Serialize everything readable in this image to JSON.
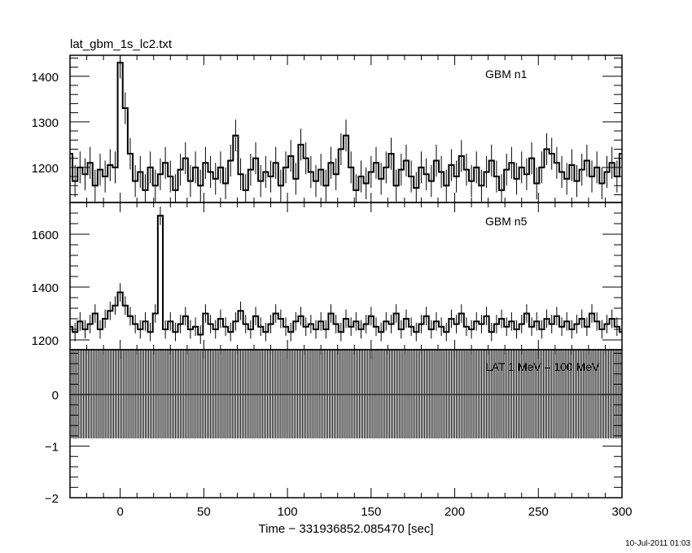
{
  "chart_data": [
    {
      "type": "line",
      "title": "lat_gbm_1s_lc2.txt",
      "series_label": "GBM n1",
      "x_start": -30,
      "x_step": 3,
      "values": [
        1230,
        1170,
        1200,
        1185,
        1210,
        1160,
        1195,
        1180,
        1205,
        1200,
        1430,
        1330,
        1230,
        1170,
        1190,
        1150,
        1200,
        1160,
        1185,
        1210,
        1180,
        1150,
        1195,
        1220,
        1170,
        1200,
        1160,
        1210,
        1190,
        1175,
        1200,
        1165,
        1215,
        1270,
        1185,
        1150,
        1195,
        1220,
        1170,
        1190,
        1180,
        1210,
        1160,
        1200,
        1225,
        1175,
        1250,
        1220,
        1190,
        1170,
        1195,
        1160,
        1210,
        1185,
        1240,
        1270,
        1200,
        1150,
        1180,
        1165,
        1190,
        1210,
        1175,
        1200,
        1230,
        1160,
        1195,
        1215,
        1180,
        1155,
        1200,
        1185,
        1170,
        1215,
        1190,
        1160,
        1205,
        1180,
        1225,
        1195,
        1170,
        1200,
        1160,
        1190,
        1215,
        1180,
        1150,
        1195,
        1210,
        1175,
        1200,
        1185,
        1220,
        1165,
        1200,
        1240,
        1230,
        1210,
        1190,
        1175,
        1205,
        1170,
        1195,
        1215,
        1180,
        1200,
        1165,
        1190,
        1210,
        1180,
        1230
      ],
      "error": 35,
      "xlim": [
        -30,
        300
      ],
      "ylim": [
        1123,
        1446
      ],
      "yticks": [
        1200,
        1300,
        1400
      ]
    },
    {
      "type": "line",
      "series_label": "GBM n5",
      "x_start": -30,
      "x_step": 3,
      "values": [
        1250,
        1230,
        1270,
        1240,
        1260,
        1300,
        1240,
        1280,
        1310,
        1330,
        1380,
        1330,
        1290,
        1260,
        1240,
        1270,
        1230,
        1300,
        1670,
        1240,
        1270,
        1230,
        1260,
        1290,
        1240,
        1250,
        1220,
        1300,
        1260,
        1240,
        1280,
        1250,
        1230,
        1270,
        1310,
        1260,
        1240,
        1290,
        1250,
        1230,
        1260,
        1300,
        1280,
        1250,
        1230,
        1270,
        1290,
        1250,
        1260,
        1240,
        1270,
        1240,
        1300,
        1260,
        1230,
        1280,
        1250,
        1270,
        1240,
        1260,
        1290,
        1250,
        1230,
        1270,
        1260,
        1300,
        1240,
        1280,
        1250,
        1230,
        1260,
        1290,
        1240,
        1270,
        1250,
        1230,
        1280,
        1260,
        1300,
        1250,
        1240,
        1270,
        1260,
        1290,
        1230,
        1260,
        1280,
        1250,
        1270,
        1240,
        1260,
        1300,
        1250,
        1270,
        1240,
        1280,
        1260,
        1290,
        1250,
        1270,
        1240,
        1260,
        1280,
        1250,
        1300,
        1270,
        1240,
        1260,
        1280,
        1250,
        1230
      ],
      "error": 35,
      "xlim": [
        -30,
        300
      ],
      "ylim": [
        1163,
        1720
      ],
      "yticks": [
        1200,
        1400,
        1600
      ]
    },
    {
      "type": "line",
      "series_label": "LAT 1 MeV – 100 MeV",
      "x_start": -30,
      "x_step": 1,
      "x_end": 300,
      "value": 0,
      "error": 0.85,
      "xlim": [
        -30,
        300
      ],
      "ylim": [
        -2,
        0.87
      ],
      "yticks": [
        -2,
        -1,
        0
      ]
    }
  ],
  "x_axis": {
    "label": "Time − 331936852.085470 [sec]",
    "ticks": [
      0,
      50,
      100,
      150,
      200,
      250,
      300
    ],
    "tick_labels": [
      "0",
      "50",
      "100",
      "150",
      "200",
      "250",
      "300"
    ]
  },
  "ytick_labels": {
    "p0": [
      "1200",
      "1300",
      "1400"
    ],
    "p1": [
      "1200",
      "1400",
      "1600"
    ],
    "p2": [
      "−2",
      "−1",
      "0"
    ]
  },
  "timestamp": "10-Jul-2011 01:03"
}
